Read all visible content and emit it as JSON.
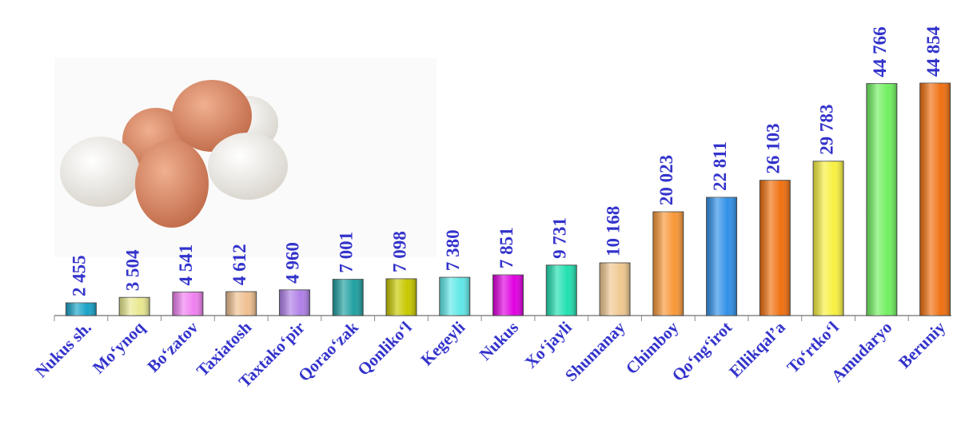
{
  "chart_data": {
    "type": "bar",
    "categories": [
      "Nukus sh.",
      "Mo‘ynoq",
      "Bo‘zatov",
      "Taxiatosh",
      "Taxtako‘pir",
      "Qorao‘zak",
      "Qonliko‘l",
      "Kegeyli",
      "Nukus",
      "Xo‘jayli",
      "Shumanay",
      "Chimboy",
      "Qo‘ng‘irot",
      "Ellikqal’a",
      "To‘rtko‘l",
      "Amudaryo",
      "Beruniy"
    ],
    "values": [
      2455,
      3504,
      4541,
      4612,
      4960,
      7001,
      7098,
      7380,
      7851,
      9731,
      10168,
      20023,
      22811,
      26103,
      29783,
      44766,
      44854
    ],
    "value_labels": [
      "2 455",
      "3 504",
      "4 541",
      "4 612",
      "4 960",
      "7 001",
      "7 098",
      "7 380",
      "7 851",
      "9 731",
      "10 168",
      "20 023",
      "22 811",
      "26 103",
      "29 783",
      "44 766",
      "44 854"
    ],
    "colors": [
      "#1aa3c8",
      "#e8e890",
      "#f080f0",
      "#f0c090",
      "#b080e8",
      "#20a0a0",
      "#c8c800",
      "#60e8e8",
      "#e000e0",
      "#20e0b0",
      "#f0c890",
      "#f89838",
      "#3090e8",
      "#f07010",
      "#f8f040",
      "#70f060",
      "#f07010"
    ]
  }
}
